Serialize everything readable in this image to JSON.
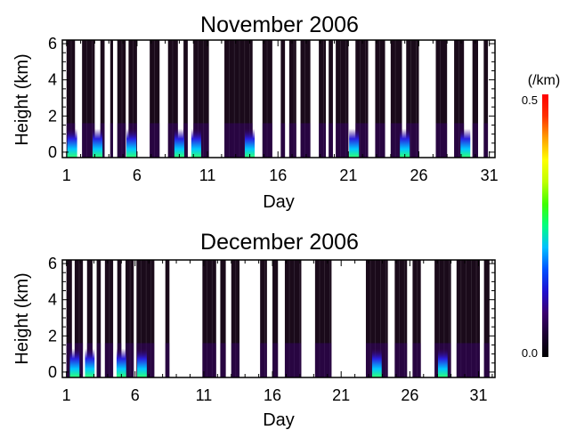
{
  "chart_data": [
    {
      "type": "heatmap",
      "title": "November 2006",
      "xlabel": "Day",
      "ylabel": "Height (km)",
      "xlim": [
        0.7,
        31.4
      ],
      "ylim": [
        -0.3,
        6.2
      ],
      "xticks": [
        1,
        6,
        11,
        16,
        21,
        26,
        31
      ],
      "yticks": [
        0,
        2,
        4,
        6
      ],
      "data_segments": [
        [
          1.0,
          1.6
        ],
        [
          2.1,
          3.0
        ],
        [
          3.4,
          3.7
        ],
        [
          4.1,
          4.3
        ],
        [
          4.6,
          5.2
        ],
        [
          5.4,
          6.0
        ],
        [
          6.9,
          7.6
        ],
        [
          8.2,
          8.9
        ],
        [
          9.3,
          9.6
        ],
        [
          10.0,
          11.1
        ],
        [
          12.2,
          14.2
        ],
        [
          14.9,
          15.6
        ],
        [
          16.2,
          16.5
        ],
        [
          16.8,
          17.3
        ],
        [
          17.6,
          18.3
        ],
        [
          18.9,
          19.4
        ],
        [
          19.6,
          19.9
        ],
        [
          20.1,
          21.0
        ],
        [
          21.5,
          22.4
        ],
        [
          22.9,
          23.6
        ],
        [
          24.0,
          24.8
        ],
        [
          25.1,
          26.0
        ],
        [
          27.2,
          28.0
        ],
        [
          28.5,
          29.2
        ],
        [
          29.8,
          30.2
        ],
        [
          30.6,
          30.9
        ]
      ],
      "surface_peak_days": [
        1.4,
        3.2,
        5.6,
        9.0,
        10.2,
        14.0,
        21.4,
        25.0,
        29.3
      ],
      "colorscale_max": 0.5
    },
    {
      "type": "heatmap",
      "title": "December 2006",
      "xlabel": "Day",
      "ylabel": "Height (km)",
      "xlim": [
        0.7,
        32.2
      ],
      "ylim": [
        -0.3,
        6.2
      ],
      "xticks": [
        1,
        6,
        11,
        16,
        21,
        26,
        31
      ],
      "yticks": [
        0,
        2,
        4,
        6
      ],
      "data_segments": [
        [
          1.0,
          1.4
        ],
        [
          1.6,
          2.2
        ],
        [
          2.5,
          2.9
        ],
        [
          3.2,
          3.5
        ],
        [
          3.8,
          4.4
        ],
        [
          4.7,
          5.0
        ],
        [
          5.3,
          5.9
        ],
        [
          6.1,
          7.4
        ],
        [
          8.2,
          8.5
        ],
        [
          10.9,
          11.9
        ],
        [
          12.2,
          12.6
        ],
        [
          13.0,
          13.6
        ],
        [
          15.1,
          15.6
        ],
        [
          16.0,
          16.4
        ],
        [
          16.9,
          18.1
        ],
        [
          19.1,
          20.3
        ],
        [
          22.8,
          24.4
        ],
        [
          24.9,
          25.8
        ],
        [
          26.2,
          26.8
        ],
        [
          27.8,
          29.0
        ],
        [
          29.4,
          31.1
        ],
        [
          31.4,
          31.8
        ]
      ],
      "surface_peak_days": [
        1.6,
        2.7,
        5.0,
        6.5,
        23.6,
        28.4
      ],
      "colorscale_max": 0.5
    }
  ],
  "colorbar": {
    "unit": "(/km)",
    "max_label": "0.5",
    "min_label": "0.0",
    "stops": [
      "#000000",
      "#1a0030",
      "#3a0070",
      "#2010d0",
      "#0050ff",
      "#00c0ff",
      "#00ff80",
      "#40ff00",
      "#c0ff00",
      "#ffff00",
      "#ffa000",
      "#ff3000",
      "#ff0000"
    ]
  },
  "colors": {
    "background": "#ffffff",
    "low": "#1a0a1a",
    "axis": "#000000"
  }
}
